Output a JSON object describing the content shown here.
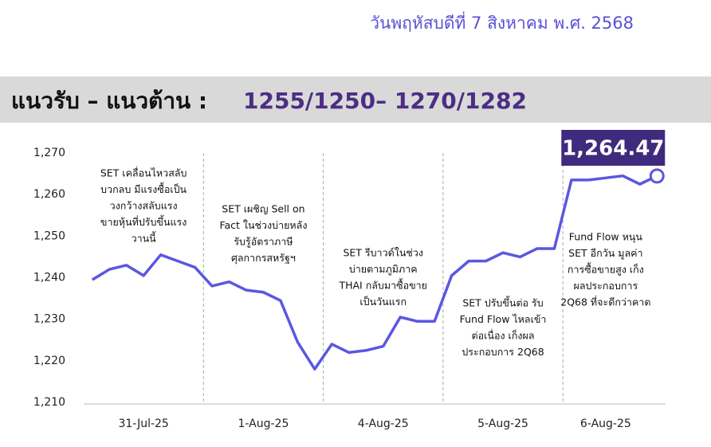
{
  "header": {
    "date": "วันพฤหัสบดีที่ 7 สิงหาคม พ.ศ. 2568"
  },
  "banner": {
    "label": "แนวรับ – แนวต้าน :",
    "levels": "1255/1250– 1270/1282"
  },
  "chart_data": {
    "type": "line",
    "categories": [
      null,
      null,
      null,
      "31-Jul-25",
      null,
      null,
      null,
      null,
      null,
      null,
      "1-Aug-25",
      null,
      null,
      null,
      null,
      null,
      null,
      "4-Aug-25",
      null,
      null,
      null,
      null,
      null,
      null,
      "5-Aug-25",
      null,
      null,
      null,
      null,
      null,
      "6-Aug-25",
      null,
      null,
      null
    ],
    "series": [
      {
        "name": "SET",
        "color": "#5b57e0",
        "values": [
          1239.5,
          1242,
          1243,
          1240.5,
          1245.5,
          1244,
          1242.5,
          1238,
          1239,
          1237,
          1236.5,
          1234.5,
          1224.5,
          1218,
          1224,
          1222,
          1222.5,
          1223.5,
          1230.5,
          1229.5,
          1229.5,
          1240.5,
          1244,
          1244,
          1246,
          1245,
          1247,
          1247,
          1263.5,
          1263.5,
          1264,
          1264.5,
          1262.5,
          1264.47
        ],
        "value_labels": [
          null,
          null,
          null,
          null,
          null,
          null,
          null,
          null,
          null,
          null,
          null,
          null,
          null,
          null,
          null,
          null,
          null,
          null,
          null,
          null,
          null,
          null,
          null,
          null,
          null,
          null,
          null,
          null,
          null,
          null,
          null,
          null,
          null,
          "1,264.47"
        ]
      }
    ],
    "ylim": [
      1210,
      1270
    ],
    "yticks": [
      {
        "value": 1210,
        "label": "1,210"
      },
      {
        "value": 1220,
        "label": "1,220"
      },
      {
        "value": 1230,
        "label": "1,230"
      },
      {
        "value": 1240,
        "label": "1,240"
      },
      {
        "value": 1250,
        "label": "1,250"
      },
      {
        "value": 1260,
        "label": "1,260"
      },
      {
        "value": 1270,
        "label": "1,270"
      }
    ],
    "annotations": [
      {
        "lines": [
          "SET เคลื่อนไหวสลับ",
          "บวกลบ มีแรงซื้อเป็น",
          "วงกว้างสลับแรง",
          "ขายหุ้นที่ปรับขึ้นแรง",
          "วานนี้"
        ]
      },
      {
        "lines": [
          "SET เผชิญ Sell on",
          "Fact ในช่วงบ่ายหลัง",
          "รับรู้อัตราภาษี",
          "ศุลกากรสหรัฐฯ"
        ]
      },
      {
        "lines": [
          "SET รีบาวด์ในช่วง",
          "บ่ายตามภูมิภาค",
          "THAI กลับมาซื้อขาย",
          "เป็นวันแรก"
        ]
      },
      {
        "lines": [
          "SET ปรับขึ้นต่อ รับ",
          "Fund Flow ไหลเข้า",
          "ต่อเนื่อง เก็งผล",
          "ประกอบการ 2Q68"
        ]
      },
      {
        "lines": [
          "Fund Flow หนุน",
          "SET อีกวัน มูลค่า",
          "การซื้อขายสูง เก็ง",
          "ผลประกอบการ",
          "2Q68 ที่จะดีกว่าคาด"
        ]
      }
    ]
  }
}
